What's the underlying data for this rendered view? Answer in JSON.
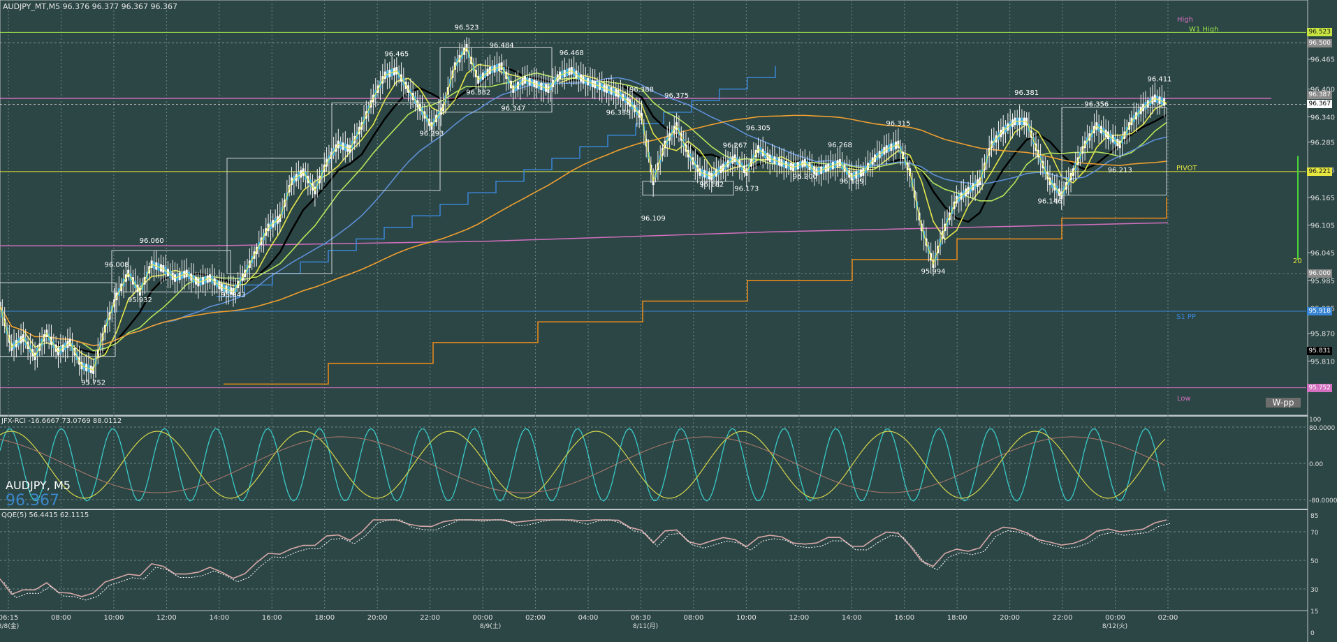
{
  "header": {
    "title": "AUDJPY_MT,M5  96.376 96.377 96.367 96.367",
    "symbol_label": "AUDJPY, M5",
    "current_price": "96.367"
  },
  "indicators": {
    "rci_label": "JFX-RCI -16.6667 73.0769 88.0112",
    "qqe_label": "QQE(5) 56.4415 62.1115"
  },
  "levels": {
    "high": "High",
    "w1_high": "W1 High",
    "pivot": "PIVOT",
    "s1": "S1 PP",
    "low": "Low",
    "wpp": "W-pp",
    "line_20": "20"
  },
  "colors": {
    "background": "#2c4645",
    "candle": "#49b6e6",
    "ma_yellow": "#e5e64a",
    "ma_green": "#b7e35a",
    "ma_black": "#000000",
    "ma_blue": "#5e8fd6",
    "ma_orange": "#f0a030",
    "ma_pink": "#d46fbf",
    "step_blue": "#3a86d6",
    "step_orange": "#f08c1a",
    "rci_cyan": "#39c9c9",
    "rci_yellow": "#d6d64a",
    "rci_brown": "#b07a6e",
    "qqe": "#d8a8a8"
  },
  "chart_data": {
    "type": "line",
    "symbol": "AUDJPY",
    "timeframe": "M5",
    "ylim": [
      95.752,
      96.523
    ],
    "y_ticks": [
      "96.465",
      "96.400",
      "96.340",
      "96.285",
      "96.225",
      "96.165",
      "96.105",
      "96.045",
      "95.985",
      "95.925",
      "95.870",
      "95.810"
    ],
    "price_tags": [
      {
        "label": "96.523",
        "bg": "#c8e640",
        "fg": "#1a1a1a"
      },
      {
        "label": "96.500",
        "bg": "#8a8a8a",
        "fg": "#ffffff"
      },
      {
        "label": "96.387",
        "bg": "#8a8a8a",
        "fg": "#ffffff"
      },
      {
        "label": "96.367",
        "bg": "#ffffff",
        "fg": "#000000"
      },
      {
        "label": "96.221",
        "bg": "#e6e640",
        "fg": "#1a1a1a"
      },
      {
        "label": "96.000",
        "bg": "#8a8a8a",
        "fg": "#ffffff"
      },
      {
        "label": "95.918",
        "bg": "#3a86d6",
        "fg": "#ffffff"
      },
      {
        "label": "95.831",
        "bg": "#000000",
        "fg": "#ffffff"
      },
      {
        "label": "95.752",
        "bg": "#d46fbf",
        "fg": "#ffffff"
      }
    ],
    "x_ticks": [
      "06:15",
      "08:00",
      "10:00",
      "12:00",
      "14:00",
      "16:00",
      "18:00",
      "20:00",
      "22:00",
      "00:00",
      "02:00",
      "04:00",
      "06:30",
      "08:00",
      "10:00",
      "12:00",
      "14:00",
      "16:00",
      "18:00",
      "20:00",
      "22:00",
      "00:00",
      "02:00"
    ],
    "date_labels": [
      "8/8(金)",
      "8/9(土)",
      "8/11(月)",
      "8/12(火)"
    ],
    "annotations": [
      {
        "t": "95.752",
        "x": 0.08,
        "y": 95.752
      },
      {
        "t": "96.008",
        "x": 0.1,
        "y": 96.008
      },
      {
        "t": "96.060",
        "x": 0.13,
        "y": 96.06
      },
      {
        "t": "95.932",
        "x": 0.12,
        "y": 95.932
      },
      {
        "t": "95.943",
        "x": 0.2,
        "y": 95.943
      },
      {
        "t": "96.465",
        "x": 0.34,
        "y": 96.465
      },
      {
        "t": "96.293",
        "x": 0.37,
        "y": 96.293
      },
      {
        "t": "96.523",
        "x": 0.4,
        "y": 96.523
      },
      {
        "t": "96.382",
        "x": 0.41,
        "y": 96.382
      },
      {
        "t": "96.484",
        "x": 0.43,
        "y": 96.484
      },
      {
        "t": "96.347",
        "x": 0.44,
        "y": 96.347
      },
      {
        "t": "96.468",
        "x": 0.49,
        "y": 96.468
      },
      {
        "t": "96.338",
        "x": 0.53,
        "y": 96.338
      },
      {
        "t": "96.388",
        "x": 0.55,
        "y": 96.388
      },
      {
        "t": "96.375",
        "x": 0.58,
        "y": 96.375
      },
      {
        "t": "96.109",
        "x": 0.56,
        "y": 96.109
      },
      {
        "t": "96.182",
        "x": 0.61,
        "y": 96.182
      },
      {
        "t": "96.267",
        "x": 0.63,
        "y": 96.267
      },
      {
        "t": "96.173",
        "x": 0.64,
        "y": 96.173
      },
      {
        "t": "96.305",
        "x": 0.65,
        "y": 96.305
      },
      {
        "t": "96.200",
        "x": 0.69,
        "y": 96.2
      },
      {
        "t": "96.268",
        "x": 0.72,
        "y": 96.268
      },
      {
        "t": "96.189",
        "x": 0.73,
        "y": 96.189
      },
      {
        "t": "96.315",
        "x": 0.77,
        "y": 96.315
      },
      {
        "t": "95.994",
        "x": 0.8,
        "y": 95.994
      },
      {
        "t": "96.381",
        "x": 0.88,
        "y": 96.381
      },
      {
        "t": "96.146",
        "x": 0.9,
        "y": 96.146
      },
      {
        "t": "96.356",
        "x": 0.94,
        "y": 96.356
      },
      {
        "t": "96.213",
        "x": 0.96,
        "y": 96.213
      },
      {
        "t": "96.411",
        "x": 1.0,
        "y": 96.411
      }
    ],
    "price_path": [
      [
        0,
        95.93
      ],
      [
        0.01,
        95.84
      ],
      [
        0.02,
        95.86
      ],
      [
        0.03,
        95.82
      ],
      [
        0.04,
        95.87
      ],
      [
        0.05,
        95.83
      ],
      [
        0.06,
        95.85
      ],
      [
        0.07,
        95.8
      ],
      [
        0.08,
        95.79
      ],
      [
        0.09,
        95.88
      ],
      [
        0.1,
        95.95
      ],
      [
        0.11,
        96.0
      ],
      [
        0.12,
        95.96
      ],
      [
        0.13,
        96.02
      ],
      [
        0.14,
        96.01
      ],
      [
        0.15,
        95.99
      ],
      [
        0.16,
        96.0
      ],
      [
        0.17,
        95.98
      ],
      [
        0.18,
        95.99
      ],
      [
        0.19,
        95.97
      ],
      [
        0.2,
        95.96
      ],
      [
        0.21,
        96.0
      ],
      [
        0.22,
        96.05
      ],
      [
        0.23,
        96.1
      ],
      [
        0.24,
        96.12
      ],
      [
        0.25,
        96.2
      ],
      [
        0.26,
        96.22
      ],
      [
        0.27,
        96.18
      ],
      [
        0.28,
        96.24
      ],
      [
        0.29,
        96.28
      ],
      [
        0.3,
        96.27
      ],
      [
        0.31,
        96.32
      ],
      [
        0.32,
        96.38
      ],
      [
        0.33,
        96.43
      ],
      [
        0.34,
        96.44
      ],
      [
        0.35,
        96.4
      ],
      [
        0.36,
        96.36
      ],
      [
        0.37,
        96.32
      ],
      [
        0.38,
        96.36
      ],
      [
        0.39,
        96.45
      ],
      [
        0.4,
        96.49
      ],
      [
        0.41,
        96.42
      ],
      [
        0.42,
        96.44
      ],
      [
        0.43,
        96.45
      ],
      [
        0.44,
        96.4
      ],
      [
        0.45,
        96.42
      ],
      [
        0.46,
        96.41
      ],
      [
        0.47,
        96.4
      ],
      [
        0.48,
        96.43
      ],
      [
        0.49,
        96.44
      ],
      [
        0.5,
        96.42
      ],
      [
        0.51,
        96.41
      ],
      [
        0.52,
        96.4
      ],
      [
        0.53,
        96.39
      ],
      [
        0.54,
        96.37
      ],
      [
        0.55,
        96.34
      ],
      [
        0.56,
        96.2
      ],
      [
        0.57,
        96.28
      ],
      [
        0.58,
        96.32
      ],
      [
        0.59,
        96.26
      ],
      [
        0.6,
        96.22
      ],
      [
        0.61,
        96.21
      ],
      [
        0.62,
        96.23
      ],
      [
        0.63,
        96.25
      ],
      [
        0.64,
        96.22
      ],
      [
        0.65,
        96.27
      ],
      [
        0.66,
        96.25
      ],
      [
        0.67,
        96.24
      ],
      [
        0.68,
        96.23
      ],
      [
        0.69,
        96.24
      ],
      [
        0.7,
        96.22
      ],
      [
        0.71,
        96.23
      ],
      [
        0.72,
        96.24
      ],
      [
        0.73,
        96.21
      ],
      [
        0.74,
        96.22
      ],
      [
        0.75,
        96.25
      ],
      [
        0.76,
        96.27
      ],
      [
        0.77,
        96.28
      ],
      [
        0.78,
        96.22
      ],
      [
        0.79,
        96.1
      ],
      [
        0.8,
        96.02
      ],
      [
        0.81,
        96.1
      ],
      [
        0.82,
        96.16
      ],
      [
        0.83,
        96.18
      ],
      [
        0.84,
        96.2
      ],
      [
        0.85,
        96.28
      ],
      [
        0.86,
        96.31
      ],
      [
        0.87,
        96.33
      ],
      [
        0.88,
        96.33
      ],
      [
        0.89,
        96.26
      ],
      [
        0.9,
        96.2
      ],
      [
        0.91,
        96.17
      ],
      [
        0.92,
        96.22
      ],
      [
        0.93,
        96.28
      ],
      [
        0.94,
        96.32
      ],
      [
        0.95,
        96.3
      ],
      [
        0.96,
        96.28
      ],
      [
        0.97,
        96.33
      ],
      [
        0.98,
        96.36
      ],
      [
        0.99,
        96.38
      ],
      [
        1.0,
        96.37
      ]
    ],
    "series": [
      {
        "color": "#000000",
        "smooth": 4
      },
      {
        "color": "#e5e64a",
        "smooth": 2
      },
      {
        "color": "#b7e35a",
        "smooth": 7
      },
      {
        "color": "#5e8fd6",
        "smooth": 14
      },
      {
        "color": "#f0a030",
        "smooth": 40
      }
    ]
  }
}
